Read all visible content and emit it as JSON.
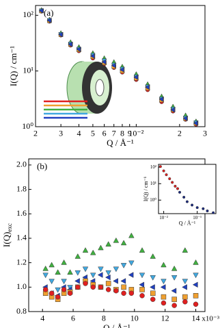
{
  "chart_data": [
    {
      "type": "scatter",
      "panel_label": "(a)",
      "x_label": "Q / Å⁻¹",
      "y_label": "I(Q) / cm⁻¹",
      "xlog": true,
      "ylog": true,
      "xlim": [
        0.002,
        0.03
      ],
      "ylim": [
        1,
        150
      ],
      "xticks": [
        {
          "value": 0.002,
          "label": "2"
        },
        {
          "value": 0.003,
          "label": "3"
        },
        {
          "value": 0.004,
          "label": "4"
        },
        {
          "value": 0.005,
          "label": "5"
        },
        {
          "value": 0.006,
          "label": "6"
        },
        {
          "value": 0.007,
          "label": "7"
        },
        {
          "value": 0.008,
          "label": "8"
        },
        {
          "value": 0.009,
          "label": "9"
        },
        {
          "value": 0.01,
          "label": "10⁻²"
        },
        {
          "value": 0.02,
          "label": "2"
        },
        {
          "value": 0.03,
          "label": "3"
        }
      ],
      "yticks": [
        {
          "value": 1,
          "label": "10⁰"
        },
        {
          "value": 10,
          "label": "10¹"
        },
        {
          "value": 100,
          "label": "10²"
        }
      ],
      "x": [
        0.0022,
        0.0025,
        0.003,
        0.0035,
        0.004,
        0.005,
        0.006,
        0.007,
        0.008,
        0.01,
        0.012,
        0.015,
        0.018,
        0.022,
        0.026
      ],
      "series": [
        {
          "color": "#e02020",
          "marker": "circle",
          "values": [
            118,
            78,
            44,
            29,
            23,
            17,
            13.5,
            11.5,
            9.5,
            7,
            4.6,
            2.8,
            1.9,
            1.35,
            1.1
          ]
        },
        {
          "color": "#f0a030",
          "marker": "square",
          "values": [
            120,
            80,
            45,
            30,
            24,
            18,
            14,
            12,
            10,
            7.4,
            4.9,
            3,
            2,
            1.4,
            1.15
          ]
        },
        {
          "color": "#40b040",
          "marker": "triangle-up",
          "values": [
            125,
            84,
            48,
            33,
            27,
            21,
            17,
            14.5,
            12,
            8.8,
            5.8,
            3.5,
            2.3,
            1.6,
            1.25
          ]
        },
        {
          "color": "#40a8e0",
          "marker": "triangle-down",
          "values": [
            122,
            82,
            46,
            31,
            25,
            19.5,
            15.5,
            13,
            11,
            8,
            5.3,
            3.2,
            2.1,
            1.45,
            1.2
          ]
        },
        {
          "color": "#2040c0",
          "marker": "triangle-left",
          "values": [
            121,
            81,
            45,
            30,
            24.5,
            18.5,
            14.5,
            12.5,
            10.5,
            7.7,
            5.1,
            3.1,
            2,
            1.4,
            1.15
          ]
        }
      ]
    },
    {
      "type": "scatter",
      "panel_label": "(b)",
      "x_label": "Q / Å⁻¹",
      "y_label": "I(Q)",
      "y_label_sub": "exc",
      "x_multiplier": "x10⁻³",
      "xlim": [
        3.1,
        14.6
      ],
      "ylim": [
        0.8,
        2.05
      ],
      "xticks": [
        4,
        6,
        8,
        10,
        12,
        14
      ],
      "yticks": [
        {
          "value": 0.8,
          "label": "0.8"
        },
        {
          "value": 1.0,
          "label": "1.0"
        },
        {
          "value": 1.2,
          "label": "1.2"
        },
        {
          "value": 1.4,
          "label": "1.4"
        },
        {
          "value": 1.6,
          "label": "1.6"
        },
        {
          "value": 1.8,
          "label": "1.8"
        },
        {
          "value": 2.0,
          "label": "2.0"
        }
      ],
      "x": [
        4.2,
        4.6,
        5,
        5.4,
        5.8,
        6.3,
        6.8,
        7.3,
        7.8,
        8.3,
        8.8,
        9.3,
        9.8,
        10.5,
        11.2,
        11.9,
        12.6,
        13.3,
        14
      ],
      "series": [
        {
          "color": "#40b040",
          "marker": "triangle-up",
          "values": [
            1.15,
            1.18,
            1.12,
            1.2,
            1.12,
            1.25,
            1.3,
            1.28,
            1.32,
            1.35,
            1.38,
            1.36,
            1.42,
            1.3,
            1.25,
            1.18,
            1.15,
            1.3,
            1.2
          ]
        },
        {
          "color": "#40a8e0",
          "marker": "triangle-down",
          "values": [
            1.1,
            1.05,
            0.98,
            1.05,
            1.0,
            1.12,
            1.15,
            1.1,
            1.15,
            1.12,
            1.15,
            1.18,
            1.2,
            1.1,
            1.08,
            1.05,
            1.08,
            1.05,
            1.1
          ]
        },
        {
          "color": "#2040c0",
          "marker": "triangle-left",
          "values": [
            1.0,
            0.95,
            0.93,
            1.0,
            0.98,
            1.05,
            1.08,
            1.05,
            1.1,
            1.08,
            1.05,
            1.05,
            1.1,
            1.02,
            1.0,
            1.0,
            0.97,
            1.0,
            1.02
          ]
        },
        {
          "color": "#f0a030",
          "marker": "square",
          "values": [
            0.95,
            0.92,
            0.9,
            0.95,
            0.96,
            1.0,
            1.05,
            1.02,
            1.0,
            1.03,
            0.98,
            1.0,
            0.98,
            0.98,
            0.95,
            0.92,
            0.9,
            0.92,
            0.93
          ]
        },
        {
          "color": "#e02020",
          "marker": "circle",
          "values": [
            0.98,
            0.95,
            0.92,
            0.98,
            0.95,
            1.0,
            1.03,
            1.0,
            1.0,
            0.98,
            0.97,
            0.95,
            0.95,
            0.93,
            0.9,
            0.87,
            0.85,
            0.88,
            0.86
          ]
        }
      ]
    },
    {
      "type": "scatter",
      "x_label": "Q / Å⁻¹",
      "y_label": "I(Q) / cm⁻¹",
      "xlog": true,
      "ylog": true,
      "xlim": [
        0.007,
        0.36
      ],
      "ylim": [
        0.15,
        150
      ],
      "xticks": [
        {
          "value": 0.01,
          "label": "10⁻²"
        },
        {
          "value": 0.1,
          "label": "10⁻¹"
        }
      ],
      "yticks": [
        {
          "value": 1,
          "label": "10⁰"
        },
        {
          "value": 10,
          "label": "10¹"
        },
        {
          "value": 100,
          "label": "10²"
        }
      ],
      "series": [
        {
          "color": "#e02020",
          "marker": "circle",
          "x": [
            0.008,
            0.01,
            0.012,
            0.015,
            0.018,
            0.022,
            0.026
          ],
          "values": [
            110,
            60,
            35,
            20,
            12,
            7,
            5
          ]
        },
        {
          "color": "#1a2a80",
          "marker": "circle",
          "x": [
            0.03,
            0.04,
            0.05,
            0.07,
            0.1,
            0.15,
            0.2,
            0.3
          ],
          "values": [
            3,
            1.5,
            0.8,
            0.5,
            0.35,
            0.3,
            0.22,
            0.17
          ]
        }
      ]
    }
  ]
}
